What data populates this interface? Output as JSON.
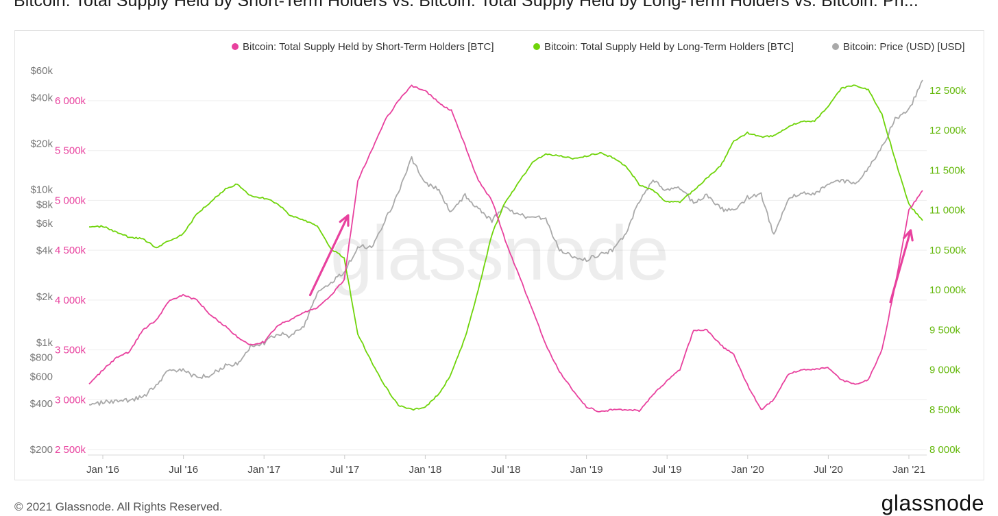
{
  "header": {
    "title": "Bitcoin: Total Supply Held by Short-Term Holders vs. Bitcoin: Total Supply Held by Long-Term Holders vs. Bitcoin: Pri..."
  },
  "footer": {
    "copyright": "© 2021 Glassnode. All Rights Reserved.",
    "logo": "glassnode"
  },
  "watermark": "glassnode",
  "colors": {
    "sth": "#e8419e",
    "lth": "#6fd40a",
    "price": "#a9a9a9",
    "annotation_arrow": "#e8419e"
  },
  "chart_data": {
    "type": "line",
    "title": "Bitcoin: Total Supply Held by Short-Term Holders vs. Bitcoin: Total Supply Held by Long-Term Holders vs. Bitcoin: Pri...",
    "x_ticks": [
      "Jan '16",
      "Jul '16",
      "Jan '17",
      "Jul '17",
      "Jan '18",
      "Jul '18",
      "Jan '19",
      "Jul '19",
      "Jan '20",
      "Jul '20",
      "Jan '21"
    ],
    "legend": {
      "position": "top-right",
      "entries": [
        "Bitcoin: Total Supply Held by Short-Term Holders [BTC]",
        "Bitcoin: Total Supply Held by Long-Term Holders [BTC]",
        "Bitcoin: Price (USD) [USD]"
      ]
    },
    "axes": {
      "price_left": {
        "scale": "log",
        "range": [
          200,
          60000
        ],
        "tick_labels": [
          "$60k",
          "$40k",
          "$20k",
          "$10k",
          "$8k",
          "$6k",
          "$4k",
          "$2k",
          "$1k",
          "$800",
          "$600",
          "$400",
          "$200"
        ],
        "tick_values": [
          60000,
          40000,
          20000,
          10000,
          8000,
          6000,
          4000,
          2000,
          1000,
          800,
          600,
          400,
          200
        ]
      },
      "sth_left": {
        "range": [
          2500000,
          6000000
        ],
        "tick_labels": [
          "6 000k",
          "5 500k",
          "5 000k",
          "4 500k",
          "4 000k",
          "3 500k",
          "3 000k",
          "2 500k"
        ],
        "tick_values": [
          6000000,
          5500000,
          5000000,
          4500000,
          4000000,
          3500000,
          3000000,
          2500000
        ]
      },
      "lth_right": {
        "range": [
          8000000,
          12500000
        ],
        "tick_labels": [
          "12 500k",
          "12 000k",
          "11 500k",
          "11 000k",
          "10 500k",
          "10 000k",
          "9 500k",
          "9 000k",
          "8 500k",
          "8 000k"
        ],
        "tick_values": [
          12500000,
          12000000,
          11500000,
          11000000,
          10500000,
          10000000,
          9500000,
          9000000,
          8500000,
          8000000
        ]
      }
    },
    "grid": true,
    "series": [
      {
        "name": "Bitcoin: Total Supply Held by Short-Term Holders [BTC]",
        "axis": "sth_left",
        "color": "#e8419e",
        "points": [
          [
            "2015-12-01",
            3150000
          ],
          [
            "2016-01-01",
            3300000
          ],
          [
            "2016-02-01",
            3420000
          ],
          [
            "2016-03-01",
            3480000
          ],
          [
            "2016-04-01",
            3700000
          ],
          [
            "2016-05-01",
            3800000
          ],
          [
            "2016-06-01",
            4000000
          ],
          [
            "2016-07-01",
            4050000
          ],
          [
            "2016-08-01",
            4000000
          ],
          [
            "2016-09-01",
            3850000
          ],
          [
            "2016-10-01",
            3750000
          ],
          [
            "2016-11-01",
            3630000
          ],
          [
            "2016-12-01",
            3550000
          ],
          [
            "2017-01-01",
            3580000
          ],
          [
            "2017-02-01",
            3750000
          ],
          [
            "2017-03-01",
            3800000
          ],
          [
            "2017-04-01",
            3880000
          ],
          [
            "2017-05-01",
            3920000
          ],
          [
            "2017-06-01",
            4050000
          ],
          [
            "2017-07-01",
            4200000
          ],
          [
            "2017-08-01",
            5200000
          ],
          [
            "2017-09-01",
            5500000
          ],
          [
            "2017-10-01",
            5800000
          ],
          [
            "2017-11-01",
            6000000
          ],
          [
            "2017-12-01",
            6150000
          ],
          [
            "2018-01-01",
            6100000
          ],
          [
            "2018-02-01",
            5980000
          ],
          [
            "2018-03-01",
            5900000
          ],
          [
            "2018-04-01",
            5550000
          ],
          [
            "2018-05-01",
            5200000
          ],
          [
            "2018-06-01",
            5000000
          ],
          [
            "2018-07-01",
            4600000
          ],
          [
            "2018-08-01",
            4250000
          ],
          [
            "2018-09-01",
            3900000
          ],
          [
            "2018-10-01",
            3550000
          ],
          [
            "2018-11-01",
            3280000
          ],
          [
            "2018-12-01",
            3100000
          ],
          [
            "2019-01-01",
            2930000
          ],
          [
            "2019-02-01",
            2880000
          ],
          [
            "2019-03-01",
            2900000
          ],
          [
            "2019-04-01",
            2900000
          ],
          [
            "2019-05-01",
            2890000
          ],
          [
            "2019-06-01",
            3050000
          ],
          [
            "2019-07-01",
            3180000
          ],
          [
            "2019-08-01",
            3300000
          ],
          [
            "2019-09-01",
            3700000
          ],
          [
            "2019-10-01",
            3700000
          ],
          [
            "2019-11-01",
            3550000
          ],
          [
            "2019-12-01",
            3450000
          ],
          [
            "2020-01-01",
            3150000
          ],
          [
            "2020-02-01",
            2900000
          ],
          [
            "2020-03-01",
            3000000
          ],
          [
            "2020-04-01",
            3250000
          ],
          [
            "2020-05-01",
            3300000
          ],
          [
            "2020-06-01",
            3300000
          ],
          [
            "2020-07-01",
            3330000
          ],
          [
            "2020-08-01",
            3200000
          ],
          [
            "2020-09-01",
            3150000
          ],
          [
            "2020-10-01",
            3200000
          ],
          [
            "2020-11-01",
            3500000
          ],
          [
            "2020-12-01",
            4150000
          ],
          [
            "2021-01-01",
            4900000
          ],
          [
            "2021-02-01",
            5100000
          ]
        ]
      },
      {
        "name": "Bitcoin: Total Supply Held by Long-Term Holders [BTC]",
        "axis": "lth_right",
        "color": "#6fd40a",
        "points": [
          [
            "2015-12-01",
            10780000
          ],
          [
            "2016-01-01",
            10800000
          ],
          [
            "2016-02-01",
            10720000
          ],
          [
            "2016-03-01",
            10660000
          ],
          [
            "2016-04-01",
            10640000
          ],
          [
            "2016-05-01",
            10530000
          ],
          [
            "2016-06-01",
            10620000
          ],
          [
            "2016-07-01",
            10700000
          ],
          [
            "2016-08-01",
            10950000
          ],
          [
            "2016-09-01",
            11100000
          ],
          [
            "2016-10-01",
            11250000
          ],
          [
            "2016-11-01",
            11330000
          ],
          [
            "2016-12-01",
            11180000
          ],
          [
            "2017-01-01",
            11150000
          ],
          [
            "2017-02-01",
            11080000
          ],
          [
            "2017-03-01",
            10930000
          ],
          [
            "2017-04-01",
            10880000
          ],
          [
            "2017-05-01",
            10800000
          ],
          [
            "2017-06-01",
            10520000
          ],
          [
            "2017-07-01",
            10400000
          ],
          [
            "2017-08-01",
            9450000
          ],
          [
            "2017-09-01",
            9100000
          ],
          [
            "2017-10-01",
            8800000
          ],
          [
            "2017-11-01",
            8550000
          ],
          [
            "2017-12-01",
            8500000
          ],
          [
            "2018-01-01",
            8530000
          ],
          [
            "2018-02-01",
            8700000
          ],
          [
            "2018-03-01",
            8950000
          ],
          [
            "2018-04-01",
            9400000
          ],
          [
            "2018-05-01",
            10000000
          ],
          [
            "2018-06-01",
            10700000
          ],
          [
            "2018-07-01",
            11100000
          ],
          [
            "2018-08-01",
            11350000
          ],
          [
            "2018-09-01",
            11600000
          ],
          [
            "2018-10-01",
            11700000
          ],
          [
            "2018-11-01",
            11680000
          ],
          [
            "2018-12-01",
            11650000
          ],
          [
            "2019-01-01",
            11680000
          ],
          [
            "2019-02-01",
            11720000
          ],
          [
            "2019-03-01",
            11660000
          ],
          [
            "2019-04-01",
            11550000
          ],
          [
            "2019-05-01",
            11320000
          ],
          [
            "2019-06-01",
            11250000
          ],
          [
            "2019-07-01",
            11100000
          ],
          [
            "2019-08-01",
            11100000
          ],
          [
            "2019-09-01",
            11250000
          ],
          [
            "2019-10-01",
            11400000
          ],
          [
            "2019-11-01",
            11550000
          ],
          [
            "2019-12-01",
            11860000
          ],
          [
            "2020-01-01",
            11970000
          ],
          [
            "2020-02-01",
            11920000
          ],
          [
            "2020-03-01",
            11930000
          ],
          [
            "2020-04-01",
            12040000
          ],
          [
            "2020-05-01",
            12110000
          ],
          [
            "2020-06-01",
            12110000
          ],
          [
            "2020-07-01",
            12300000
          ],
          [
            "2020-08-01",
            12530000
          ],
          [
            "2020-09-01",
            12560000
          ],
          [
            "2020-10-01",
            12510000
          ],
          [
            "2020-11-01",
            12200000
          ],
          [
            "2020-12-01",
            11630000
          ],
          [
            "2021-01-01",
            11070000
          ],
          [
            "2021-02-01",
            10870000
          ]
        ]
      },
      {
        "name": "Bitcoin: Price (USD) [USD]",
        "axis": "price_left",
        "color": "#a9a9a9",
        "points": [
          [
            "2015-12-01",
            380
          ],
          [
            "2016-01-01",
            410
          ],
          [
            "2016-02-01",
            410
          ],
          [
            "2016-03-01",
            420
          ],
          [
            "2016-04-01",
            440
          ],
          [
            "2016-05-01",
            530
          ],
          [
            "2016-06-01",
            670
          ],
          [
            "2016-07-01",
            660
          ],
          [
            "2016-08-01",
            590
          ],
          [
            "2016-09-01",
            610
          ],
          [
            "2016-10-01",
            700
          ],
          [
            "2016-11-01",
            730
          ],
          [
            "2016-12-01",
            950
          ],
          [
            "2017-01-01",
            1000
          ],
          [
            "2017-02-01",
            1150
          ],
          [
            "2017-03-01",
            1100
          ],
          [
            "2017-04-01",
            1300
          ],
          [
            "2017-05-01",
            2100
          ],
          [
            "2017-06-01",
            2500
          ],
          [
            "2017-07-01",
            2850
          ],
          [
            "2017-08-01",
            4300
          ],
          [
            "2017-09-01",
            4200
          ],
          [
            "2017-10-01",
            6200
          ],
          [
            "2017-11-01",
            9500
          ],
          [
            "2017-12-01",
            16000
          ],
          [
            "2018-01-01",
            11000
          ],
          [
            "2018-02-01",
            10000
          ],
          [
            "2018-03-01",
            7000
          ],
          [
            "2018-04-01",
            9200
          ],
          [
            "2018-05-01",
            7500
          ],
          [
            "2018-06-01",
            6300
          ],
          [
            "2018-07-01",
            7800
          ],
          [
            "2018-08-01",
            6800
          ],
          [
            "2018-09-01",
            6600
          ],
          [
            "2018-10-01",
            6400
          ],
          [
            "2018-11-01",
            4000
          ],
          [
            "2018-12-01",
            3700
          ],
          [
            "2019-01-01",
            3500
          ],
          [
            "2019-02-01",
            3800
          ],
          [
            "2019-03-01",
            4000
          ],
          [
            "2019-04-01",
            5200
          ],
          [
            "2019-05-01",
            8500
          ],
          [
            "2019-06-01",
            11500
          ],
          [
            "2019-07-01",
            9800
          ],
          [
            "2019-08-01",
            10200
          ],
          [
            "2019-09-01",
            8300
          ],
          [
            "2019-10-01",
            9200
          ],
          [
            "2019-11-01",
            7500
          ],
          [
            "2019-12-01",
            7200
          ],
          [
            "2020-01-01",
            8900
          ],
          [
            "2020-02-01",
            9400
          ],
          [
            "2020-03-01",
            5000
          ],
          [
            "2020-04-01",
            8600
          ],
          [
            "2020-05-01",
            9500
          ],
          [
            "2020-06-01",
            9200
          ],
          [
            "2020-07-01",
            11100
          ],
          [
            "2020-08-01",
            11600
          ],
          [
            "2020-09-01",
            10700
          ],
          [
            "2020-10-01",
            13800
          ],
          [
            "2020-11-01",
            19000
          ],
          [
            "2020-12-01",
            29000
          ],
          [
            "2021-01-01",
            33000
          ],
          [
            "2021-02-01",
            52000
          ]
        ]
      }
    ],
    "annotations": [
      {
        "type": "arrow",
        "from": [
          "2017-04-15",
          4050000
        ],
        "to": [
          "2017-07-10",
          4850000
        ],
        "axis": "sth_left"
      },
      {
        "type": "arrow",
        "from": [
          "2020-11-20",
          3980000
        ],
        "to": [
          "2021-01-05",
          4700000
        ],
        "axis": "sth_left"
      }
    ]
  }
}
